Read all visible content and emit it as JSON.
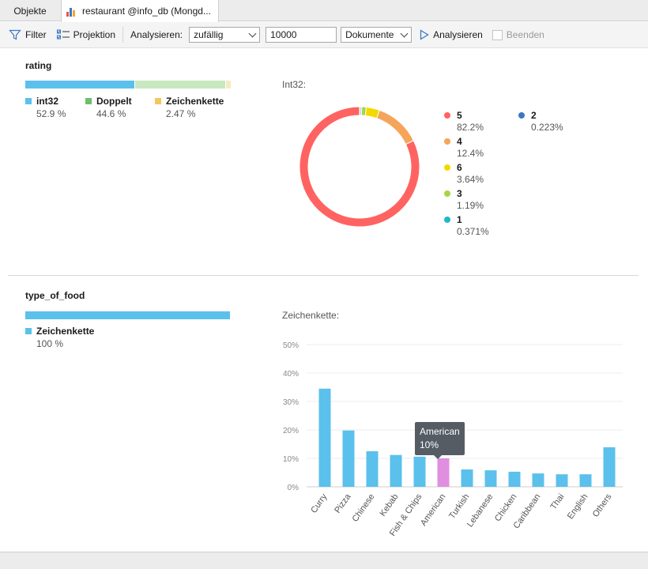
{
  "tabs": {
    "objects": "Objekte",
    "active": "restaurant @info_db (Mongd..."
  },
  "toolbar": {
    "filter": "Filter",
    "projection": "Projektion",
    "analyze_label": "Analysieren:",
    "mode": "zufällig",
    "count": "10000",
    "target": "Dokumente",
    "analyze_button": "Analysieren",
    "stop": "Beenden"
  },
  "rating": {
    "title": "rating",
    "types": [
      {
        "name": "int32",
        "pct": "52.9 %",
        "share": 52.9,
        "color": "#5bc0ec"
      },
      {
        "name": "Doppelt",
        "pct": "44.6 %",
        "share": 44.6,
        "color": "#6cc06c"
      },
      {
        "name": "Zeichenkette",
        "pct": "2.47 %",
        "share": 2.47,
        "color": "#f2c85b"
      }
    ],
    "bar_colors": [
      "#5bc0ec",
      "#c8e8c0",
      "#f7eac0"
    ],
    "chart_caption": "Int32:",
    "chart_data": {
      "type": "pie",
      "series": [
        {
          "name": "5",
          "label": "82.2%",
          "value": 82.2,
          "color": "#ff6361"
        },
        {
          "name": "4",
          "label": "12.4%",
          "value": 12.4,
          "color": "#f5a55a"
        },
        {
          "name": "6",
          "label": "3.64%",
          "value": 3.64,
          "color": "#f5d800"
        },
        {
          "name": "3",
          "label": "1.19%",
          "value": 1.19,
          "color": "#a9d443"
        },
        {
          "name": "1",
          "label": "0.371%",
          "value": 0.371,
          "color": "#21b8c7"
        },
        {
          "name": "2",
          "label": "0.223%",
          "value": 0.223,
          "color": "#3b78c2"
        }
      ]
    }
  },
  "food": {
    "title": "type_of_food",
    "types": [
      {
        "name": "Zeichenkette",
        "pct": "100 %",
        "share": 100,
        "color": "#5bc0ec"
      }
    ],
    "chart_caption": "Zeichenkette:",
    "tooltip": {
      "title": "American",
      "value": "10%"
    },
    "chart_data": {
      "type": "bar",
      "categories": [
        "Curry",
        "Pizza",
        "Chinese",
        "Kebab",
        "Fish & Chips",
        "American",
        "Turkish",
        "Lebanese",
        "Chicken",
        "Caribbean",
        "Thai",
        "English",
        "Others"
      ],
      "values": [
        34.5,
        19.8,
        12.5,
        11.2,
        10.6,
        10.0,
        6.1,
        5.8,
        5.3,
        4.7,
        4.4,
        4.4,
        13.9
      ],
      "highlight": "American",
      "bar_color": "#5bc0ec",
      "highlight_color": "#e08ee0",
      "ylim": [
        0,
        50
      ],
      "yticks": [
        "0%",
        "10%",
        "20%",
        "30%",
        "40%",
        "50%"
      ]
    }
  }
}
